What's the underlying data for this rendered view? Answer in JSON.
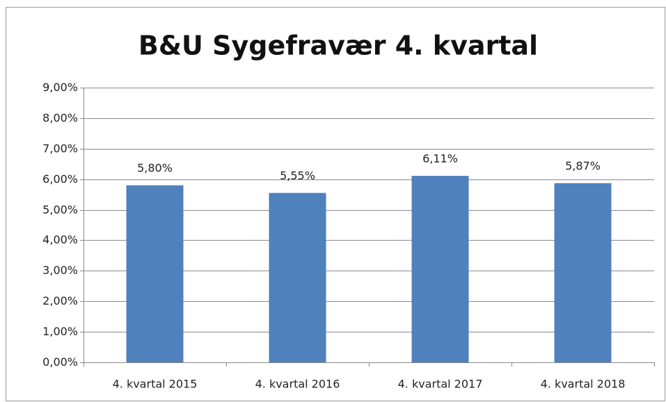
{
  "chart_data": {
    "type": "bar",
    "title": "B&U Sygefravær 4. kvartal",
    "categories": [
      "4. kvartal 2015",
      "4. kvartal 2016",
      "4. kvartal 2017",
      "4. kvartal 2018"
    ],
    "values": [
      5.8,
      5.55,
      6.11,
      5.87
    ],
    "value_labels": [
      "5,80%",
      "5,55%",
      "6,11%",
      "5,87%"
    ],
    "color": "#4f81bd",
    "ylim": [
      0,
      9
    ],
    "yticks": [
      {
        "value": 0,
        "label": "0,00%"
      },
      {
        "value": 1,
        "label": "1,00%"
      },
      {
        "value": 2,
        "label": "2,00%"
      },
      {
        "value": 3,
        "label": "3,00%"
      },
      {
        "value": 4,
        "label": "4,00%"
      },
      {
        "value": 5,
        "label": "5,00%"
      },
      {
        "value": 6,
        "label": "6,00%"
      },
      {
        "value": 7,
        "label": "7,00%"
      },
      {
        "value": 8,
        "label": "8,00%"
      },
      {
        "value": 9,
        "label": "9,00%"
      }
    ],
    "grid": true
  }
}
